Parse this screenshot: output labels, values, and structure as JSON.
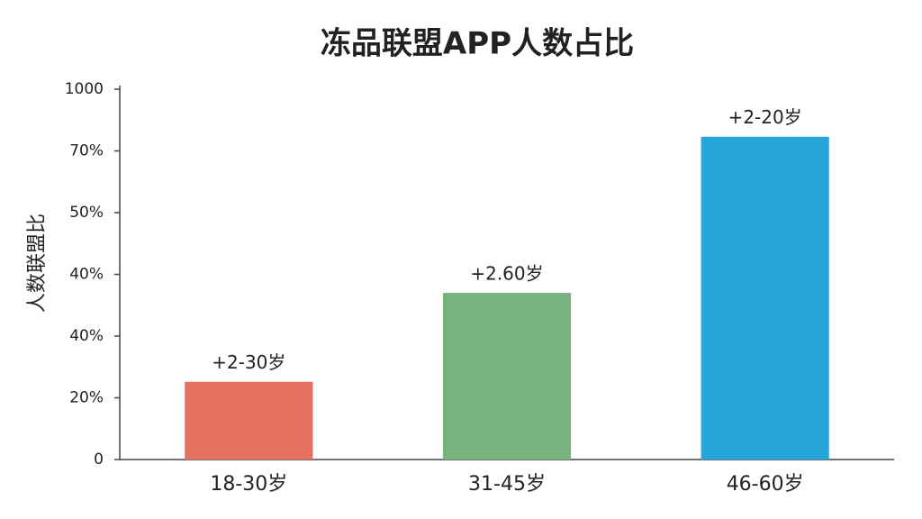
{
  "chart_data": {
    "type": "bar",
    "title": "冻品联盟APP人数占比",
    "y_label": "人数联盟比",
    "categories": [
      "18-30岁",
      "31-45岁",
      "46-60岁"
    ],
    "values": [
      12.6,
      27,
      52.3
    ],
    "bar_labels": [
      "+2-30岁",
      "+2.60岁",
      "+2-20岁"
    ],
    "colors": [
      "#e8705f",
      "#78b27e",
      "#27a6dc"
    ],
    "ylim": [
      0,
      60
    ],
    "yticks": [
      0,
      {
        "value": 10,
        "label": "20%"
      },
      {
        "value": 20,
        "label": "40%"
      },
      {
        "value": 30,
        "label": "40%"
      },
      {
        "value": 40,
        "label": "50%"
      },
      {
        "value": 50,
        "label": "70%"
      },
      {
        "value": 60,
        "label": "1000"
      }
    ]
  }
}
